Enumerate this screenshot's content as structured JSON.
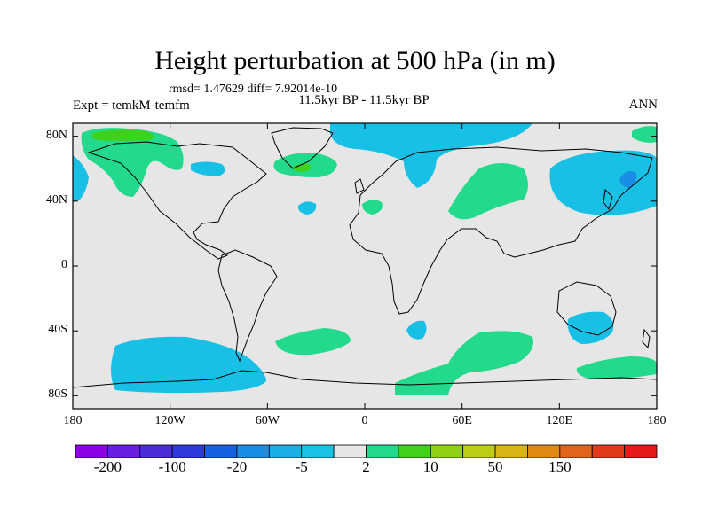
{
  "title": "Height perturbation at 500 hPa (in m)",
  "stats": "rmsd= 1.47629 diff= 7.92014e-10",
  "period": "11.5kyr BP - 11.5kyr BP",
  "experiment": "Expt = temkM-temfm",
  "season": "ANN",
  "lat_ticks": [
    {
      "value": 80,
      "label": "80N"
    },
    {
      "value": 40,
      "label": "40N"
    },
    {
      "value": 0,
      "label": "0"
    },
    {
      "value": -40,
      "label": "40S"
    },
    {
      "value": -80,
      "label": "80S"
    }
  ],
  "lon_ticks": [
    {
      "value": -180,
      "label": "180"
    },
    {
      "value": -120,
      "label": "120W"
    },
    {
      "value": -60,
      "label": "60W"
    },
    {
      "value": 0,
      "label": "0"
    },
    {
      "value": 60,
      "label": "60E"
    },
    {
      "value": 120,
      "label": "120E"
    },
    {
      "value": 180,
      "label": "180"
    }
  ],
  "colorbar": {
    "colors": [
      "#8c00e6",
      "#6a1fe0",
      "#4b2bd6",
      "#2b3ad8",
      "#1562e0",
      "#1a8ee6",
      "#19aee6",
      "#1ac3e6",
      "#e6e6e6",
      "#23d98c",
      "#3fd11c",
      "#8fd114",
      "#bdcc14",
      "#d6b514",
      "#e08a14",
      "#e0641a",
      "#e03c1c",
      "#e61a1a"
    ],
    "labels": [
      {
        "after_box": 1,
        "text": "-200"
      },
      {
        "after_box": 3,
        "text": "-100"
      },
      {
        "after_box": 5,
        "text": "-20"
      },
      {
        "after_box": 7,
        "text": "-5"
      },
      {
        "after_box": 9,
        "text": "2"
      },
      {
        "after_box": 11,
        "text": "10"
      },
      {
        "after_box": 13,
        "text": "50"
      },
      {
        "after_box": 15,
        "text": "150"
      }
    ]
  },
  "colors": {
    "negative": "#19c0e6",
    "negative_strong": "#1a8ee6",
    "positive": "#23d98c",
    "positive_strong": "#3fd11c",
    "neutral": "#e6e6e6"
  }
}
